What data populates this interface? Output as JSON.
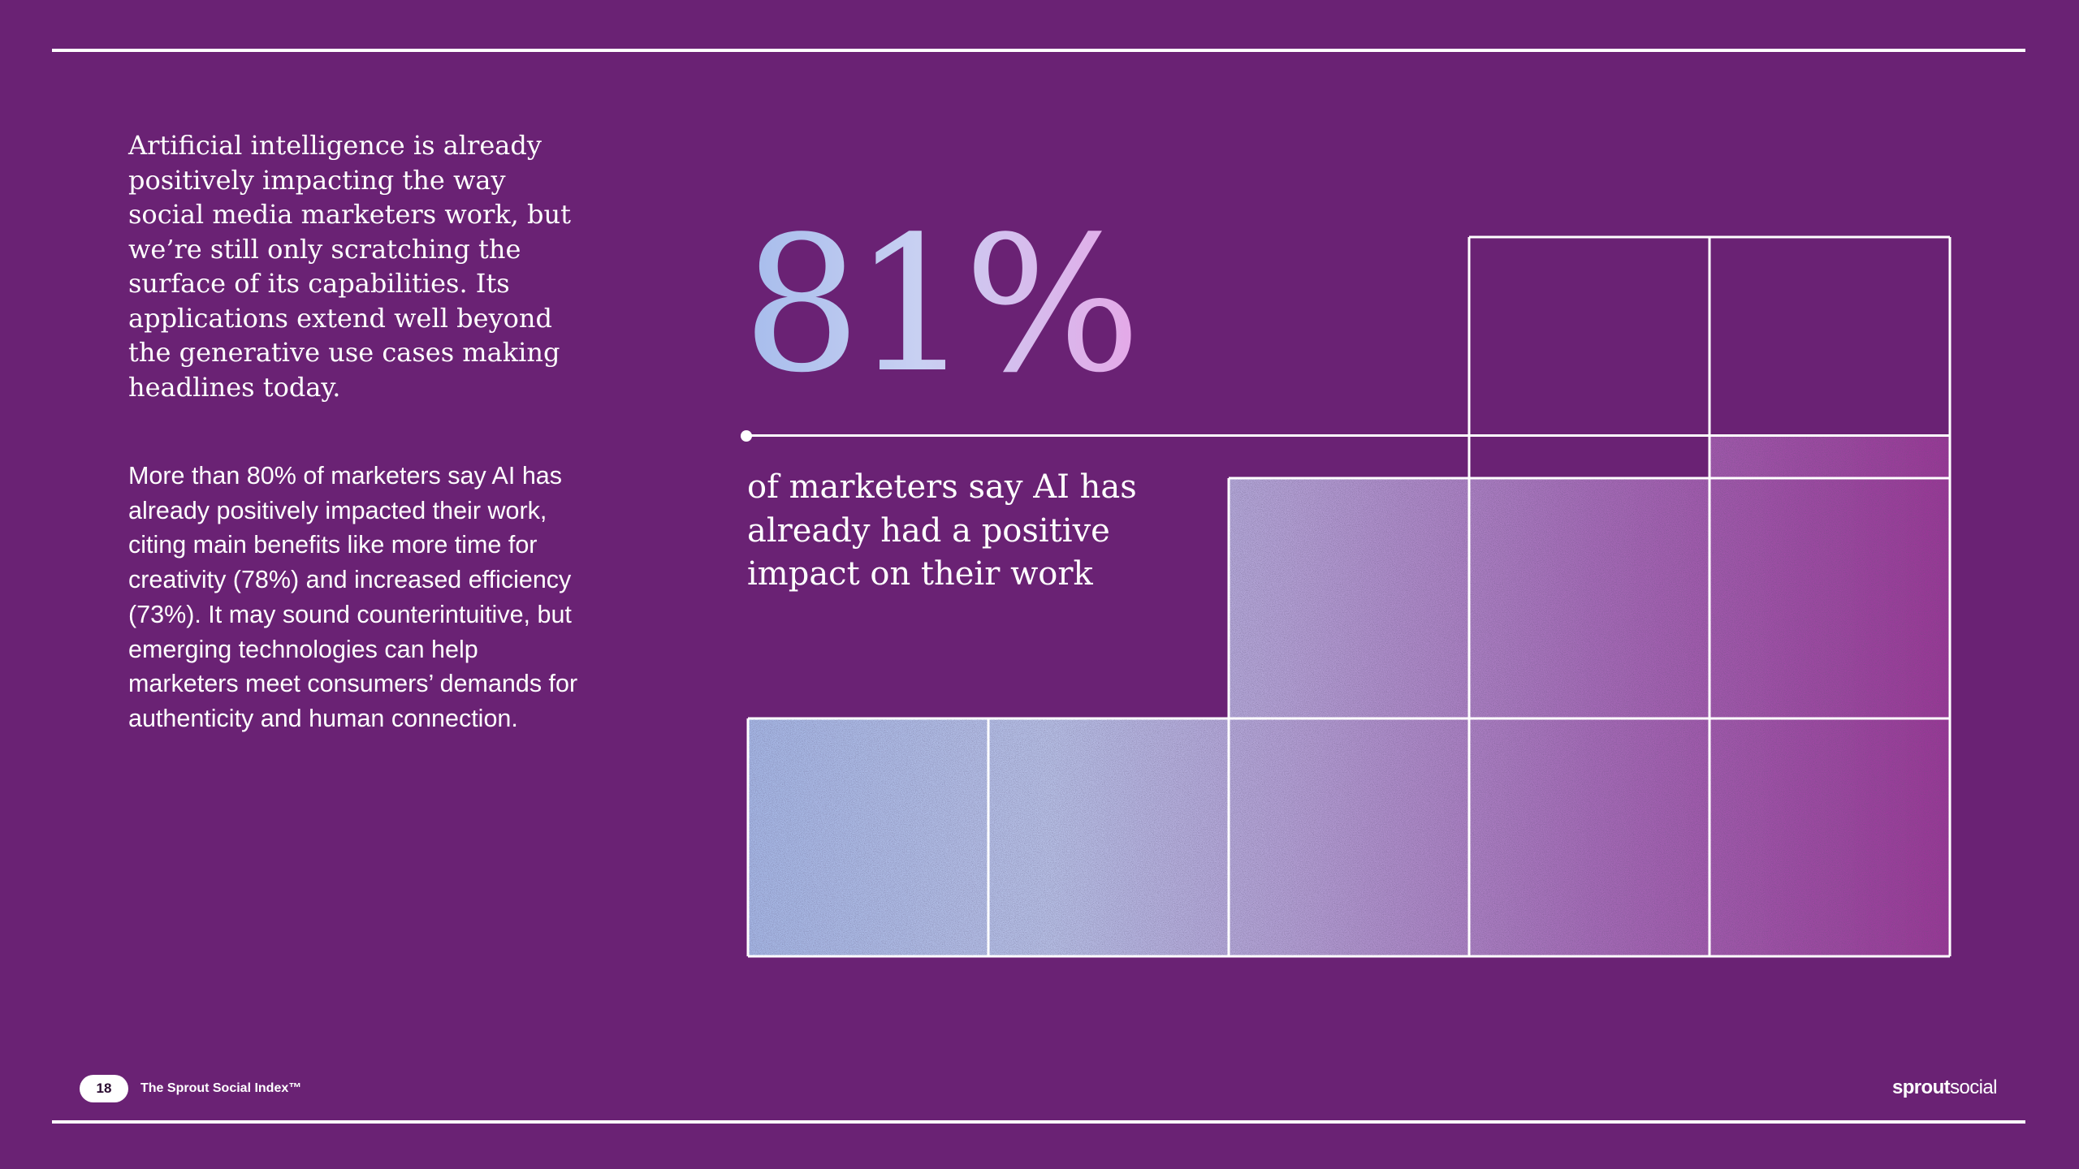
{
  "intro_paragraph": "Artificial intelligence is already positively impacting the way social media marketers work, but we’re still only scratching the surface of its capabilities. Its applications extend well beyond the generative use cases making headlines today.",
  "body_paragraph": "More than 80% of marketers say AI has already positively impacted their work, citing main benefits like more time for creativity (78%) and increased efficiency (73%). It may sound counterintuitive, but emerging technologies can help marketers meet consumers’ demands for authenticity and human connection.",
  "stat": {
    "value": "81%",
    "percent": 81,
    "caption": "of marketers say AI has already had a positive impact on their work"
  },
  "footer": {
    "page_number": "18",
    "report_title": "The Sprout Social Index™",
    "logo_bold": "sprout",
    "logo_regular": "social"
  },
  "colors": {
    "background": "#6a2274",
    "cell_gradient_start": "#a6b8e6",
    "cell_gradient_end": "#9a3596",
    "stat_gradient": [
      "#a6bcec",
      "#c8d0f2",
      "#e4a9e8"
    ]
  }
}
